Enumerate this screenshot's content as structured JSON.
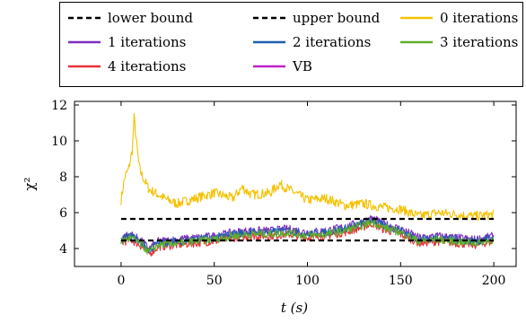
{
  "chart_data": {
    "type": "line",
    "xlabel": "t (s)",
    "ylabel": "χ²",
    "xlim": [
      -25,
      212
    ],
    "ylim": [
      3.0,
      12.2
    ],
    "xticks": [
      0,
      50,
      100,
      150,
      200
    ],
    "yticks": [
      4,
      6,
      8,
      10,
      12
    ],
    "grid": false,
    "legend_placement": "top",
    "series": [
      {
        "name": "lower bound",
        "color": "#000000",
        "style": "dashed",
        "x": [
          0,
          200
        ],
        "y": [
          4.45,
          4.45
        ]
      },
      {
        "name": "upper bound",
        "color": "#000000",
        "style": "dashed",
        "x": [
          0,
          200
        ],
        "y": [
          5.65,
          5.65
        ]
      },
      {
        "name": "0 iterations",
        "color": "#f5c100",
        "style": "solid",
        "x": [
          0,
          2,
          4,
          6,
          7,
          8,
          9,
          10,
          12,
          15,
          20,
          25,
          30,
          40,
          50,
          60,
          65,
          70,
          80,
          85,
          90,
          100,
          110,
          120,
          130,
          140,
          150,
          160,
          170,
          180,
          190,
          200
        ],
        "y": [
          6.7,
          8.0,
          8.4,
          9.5,
          11.3,
          10.2,
          9.2,
          8.4,
          7.9,
          7.3,
          7.0,
          6.7,
          6.5,
          6.8,
          7.1,
          6.8,
          7.4,
          7.0,
          7.1,
          7.6,
          7.3,
          6.7,
          6.8,
          6.4,
          6.5,
          6.3,
          6.2,
          5.8,
          6.0,
          5.9,
          5.8,
          5.9
        ]
      },
      {
        "name": "1 iterations",
        "color": "#7b2fbe",
        "style": "solid",
        "x": [
          0,
          5,
          10,
          15,
          20,
          30,
          40,
          50,
          60,
          70,
          80,
          90,
          100,
          110,
          120,
          130,
          135,
          140,
          150,
          160,
          170,
          180,
          190,
          200
        ],
        "y": [
          4.6,
          4.8,
          4.5,
          4.0,
          4.4,
          4.5,
          4.6,
          4.7,
          4.9,
          5.0,
          5.0,
          5.1,
          4.9,
          5.0,
          5.2,
          5.5,
          5.7,
          5.4,
          5.1,
          4.6,
          4.7,
          4.6,
          4.5,
          4.7
        ]
      },
      {
        "name": "2 iterations",
        "color": "#1f5fb0",
        "style": "solid",
        "x": [
          0,
          5,
          10,
          15,
          20,
          30,
          40,
          50,
          60,
          70,
          80,
          90,
          100,
          110,
          120,
          130,
          135,
          140,
          150,
          160,
          170,
          180,
          190,
          200
        ],
        "y": [
          4.5,
          4.7,
          4.4,
          3.9,
          4.3,
          4.4,
          4.5,
          4.6,
          4.8,
          4.9,
          4.9,
          5.0,
          4.8,
          4.9,
          5.1,
          5.4,
          5.6,
          5.3,
          5.0,
          4.5,
          4.6,
          4.5,
          4.4,
          4.6
        ]
      },
      {
        "name": "3 iterations",
        "color": "#5faf2a",
        "style": "solid",
        "x": [
          0,
          5,
          10,
          15,
          20,
          30,
          40,
          50,
          60,
          70,
          80,
          90,
          100,
          110,
          120,
          130,
          135,
          140,
          150,
          160,
          170,
          180,
          190,
          200
        ],
        "y": [
          4.4,
          4.6,
          4.3,
          3.8,
          4.2,
          4.3,
          4.4,
          4.5,
          4.7,
          4.8,
          4.8,
          4.9,
          4.7,
          4.8,
          5.0,
          5.3,
          5.5,
          5.2,
          4.9,
          4.4,
          4.5,
          4.4,
          4.3,
          4.5
        ]
      },
      {
        "name": "4 iterations",
        "color": "#e8303a",
        "style": "solid",
        "x": [
          0,
          5,
          10,
          15,
          20,
          30,
          40,
          50,
          60,
          70,
          80,
          90,
          100,
          110,
          120,
          130,
          135,
          140,
          150,
          160,
          170,
          180,
          190,
          200
        ],
        "y": [
          4.3,
          4.5,
          4.2,
          3.7,
          4.1,
          4.2,
          4.3,
          4.4,
          4.6,
          4.7,
          4.7,
          4.8,
          4.6,
          4.7,
          4.9,
          5.2,
          5.4,
          5.1,
          4.8,
          4.3,
          4.4,
          4.3,
          4.2,
          4.4
        ]
      },
      {
        "name": "VB",
        "color": "#c020c8",
        "style": "solid",
        "x": [
          0,
          5,
          10,
          15,
          20,
          30,
          40,
          50,
          60,
          70,
          80,
          90,
          100,
          110,
          120,
          130,
          135,
          140,
          150,
          160,
          170,
          180,
          190,
          200
        ],
        "y": [
          4.7,
          4.9,
          4.6,
          4.1,
          4.5,
          4.6,
          4.7,
          4.8,
          5.0,
          5.1,
          5.1,
          5.2,
          5.0,
          5.1,
          5.3,
          5.6,
          5.8,
          5.5,
          5.2,
          4.7,
          4.8,
          4.7,
          4.6,
          4.8
        ]
      }
    ]
  }
}
